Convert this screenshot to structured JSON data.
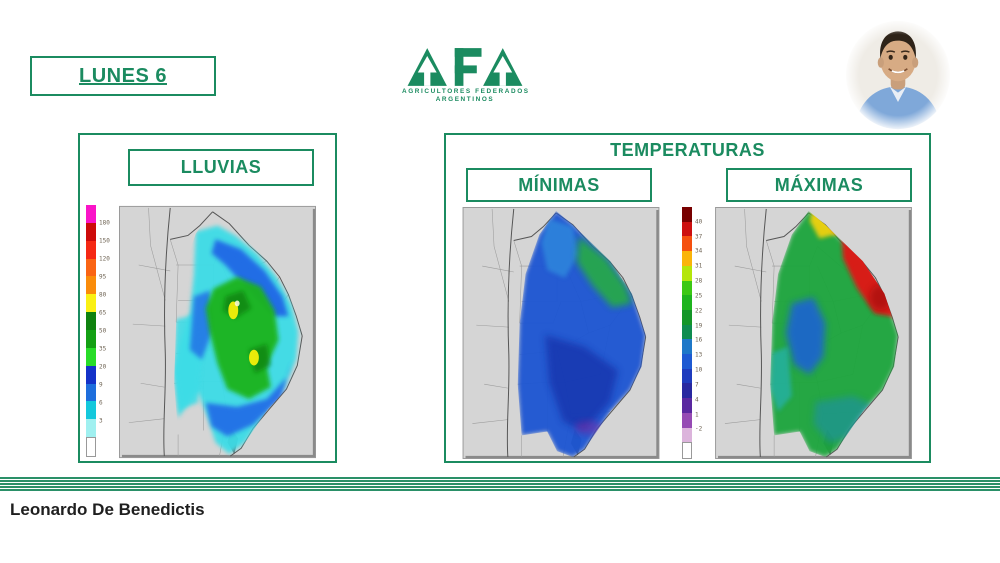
{
  "header": {
    "date_label": "LUNES 6",
    "logo": {
      "acronym": "AFA",
      "tagline_line1": "AGRICULTORES FEDERADOS",
      "tagline_line2": "ARGENTINOS"
    }
  },
  "footer": {
    "author": "Leonardo De Benedictis"
  },
  "theme": {
    "accent_green": "#1b8b60",
    "stripe_green": "#2a9068"
  },
  "panels": {
    "lluvias": {
      "title": "LLUVIAS"
    },
    "temperaturas": {
      "title": "TEMPERATURAS",
      "minimas_label": "MÍNIMAS",
      "maximas_label": "MÁXIMAS"
    }
  },
  "chart_data": [
    {
      "type": "heatmap",
      "title": "LLUVIAS",
      "map": "Argentina centro-norte",
      "legend_position": "left",
      "scale_labels": [
        "180",
        "150",
        "120",
        "95",
        "80",
        "65",
        "50",
        "35",
        "20",
        "9",
        "6",
        "3"
      ],
      "scale_colors": [
        "#fa14c8",
        "#cd0a0a",
        "#f52814",
        "#fa6414",
        "#fa8c0a",
        "#faf014",
        "#0f820f",
        "#14a014",
        "#28dc28",
        "#1432c8",
        "#1e6edc",
        "#14c8dc",
        "#a0f0f0",
        "#ffffff"
      ],
      "summary": "Franja de lluvia celeste y azul sobre el centro y noreste de Argentina, con nucleo verde de lluvias fuertes sobre el centro-este y pequenos maximos amarillos"
    },
    {
      "type": "heatmap",
      "title": "MÍNIMAS",
      "map": "Argentina centro-norte",
      "legend_position": "shared-center",
      "scale_labels": [
        "40",
        "37",
        "34",
        "31",
        "28",
        "25",
        "22",
        "19",
        "16",
        "13",
        "10",
        "7",
        "4",
        "1",
        "-2"
      ],
      "scale_colors": [
        "#780000",
        "#cd0f0f",
        "#f5500f",
        "#fab40a",
        "#b4e60a",
        "#3cc814",
        "#1eb41e",
        "#149628",
        "#0f8c50",
        "#1e78c8",
        "#1e5ad2",
        "#1e3cbe",
        "#2828a0",
        "#5a28a0",
        "#964bb4",
        "#dcb4dc",
        "#ffffff"
      ],
      "summary": "Minimas frias: azules dominantes en centro y sur del area, verdes hacia el noreste"
    },
    {
      "type": "heatmap",
      "title": "MÁXIMAS",
      "map": "Argentina centro-norte",
      "legend_position": "shared-center",
      "scale_labels": [
        "40",
        "37",
        "34",
        "31",
        "28",
        "25",
        "22",
        "19",
        "16",
        "13",
        "10",
        "7",
        "4",
        "1",
        "-2"
      ],
      "scale_colors": [
        "#780000",
        "#cd0f0f",
        "#f5500f",
        "#fab40a",
        "#b4e60a",
        "#3cc814",
        "#1eb41e",
        "#149628",
        "#0f8c50",
        "#1e78c8",
        "#1e5ad2",
        "#1e3cbe",
        "#2828a0",
        "#5a28a0",
        "#964bb4",
        "#dcb4dc",
        "#ffffff"
      ],
      "summary": "Maximas: rojos y naranjas en el noreste, verdes en gran parte del centro, azules en el centro-oeste"
    }
  ]
}
